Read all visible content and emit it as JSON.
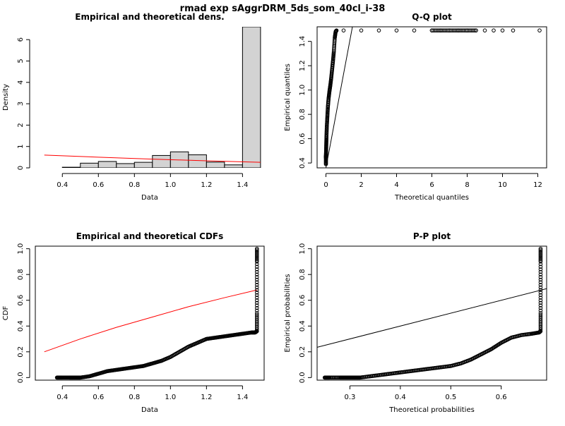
{
  "title": "rmad exp sAggrDRM_5ds_som_40cl_i-38",
  "chart_data": [
    {
      "type": "bar",
      "title": "Empirical and theoretical dens.",
      "xlabel": "Data",
      "ylabel": "Density",
      "xlim": [
        0.25,
        1.52
      ],
      "ylim": [
        0,
        6.6
      ],
      "x_ticks": [
        "0.4",
        "0.6",
        "0.8",
        "1.0",
        "1.2",
        "1.4"
      ],
      "y_ticks": [
        "0",
        "1",
        "2",
        "3",
        "4",
        "5",
        "6"
      ],
      "bins": [
        {
          "x0": 0.3,
          "x1": 0.4,
          "density": 0.0
        },
        {
          "x0": 0.4,
          "x1": 0.5,
          "density": 0.03
        },
        {
          "x0": 0.5,
          "x1": 0.6,
          "density": 0.22
        },
        {
          "x0": 0.6,
          "x1": 0.7,
          "density": 0.3
        },
        {
          "x0": 0.7,
          "x1": 0.8,
          "density": 0.2
        },
        {
          "x0": 0.8,
          "x1": 0.9,
          "density": 0.26
        },
        {
          "x0": 0.9,
          "x1": 1.0,
          "density": 0.58
        },
        {
          "x0": 1.0,
          "x1": 1.1,
          "density": 0.75
        },
        {
          "x0": 1.1,
          "x1": 1.2,
          "density": 0.61
        },
        {
          "x0": 1.2,
          "x1": 1.3,
          "density": 0.27
        },
        {
          "x0": 1.3,
          "x1": 1.4,
          "density": 0.14
        },
        {
          "x0": 1.4,
          "x1": 1.5,
          "density": 6.6
        }
      ],
      "theoretical_density": {
        "x": [
          0.3,
          0.6,
          0.9,
          1.2,
          1.5
        ],
        "y": [
          0.6,
          0.5,
          0.41,
          0.33,
          0.26
        ]
      }
    },
    {
      "type": "scatter",
      "title": "Q-Q plot",
      "xlabel": "Theoretical quantiles",
      "ylabel": "Empirical quantiles",
      "xlim": [
        -0.5,
        12.5
      ],
      "ylim": [
        0.36,
        1.52
      ],
      "x_ticks": [
        "0",
        "2",
        "4",
        "6",
        "8",
        "10",
        "12"
      ],
      "y_ticks": [
        "0.4",
        "0.6",
        "0.8",
        "1.0",
        "1.2",
        "1.4"
      ],
      "reference_line": {
        "x": [
          0,
          1.5
        ],
        "y": [
          0.36,
          1.52
        ]
      },
      "points": {
        "x": [
          0.0,
          0.0,
          0.0,
          0.01,
          0.02,
          0.03,
          0.05,
          0.08,
          0.11,
          0.15,
          0.2,
          0.25,
          0.3,
          0.35,
          0.4,
          0.45,
          0.5,
          0.55,
          0.6,
          1.0,
          2.0,
          3.0,
          4.0,
          5.0,
          6.0,
          6.5,
          7.0,
          7.5,
          8.0,
          8.5,
          9.0,
          9.5,
          10.0,
          10.6,
          12.1
        ],
        "y": [
          0.39,
          0.44,
          0.46,
          0.5,
          0.56,
          0.62,
          0.7,
          0.78,
          0.86,
          0.93,
          0.99,
          1.04,
          1.1,
          1.17,
          1.24,
          1.32,
          1.43,
          1.48,
          1.49,
          1.49,
          1.49,
          1.49,
          1.49,
          1.49,
          1.49,
          1.49,
          1.49,
          1.49,
          1.49,
          1.49,
          1.49,
          1.49,
          1.49,
          1.49,
          1.49
        ]
      }
    },
    {
      "type": "line",
      "title": "Empirical and theoretical CDFs",
      "xlabel": "Data",
      "ylabel": "CDF",
      "xlim": [
        0.25,
        1.52
      ],
      "ylim": [
        -0.02,
        1.02
      ],
      "x_ticks": [
        "0.4",
        "0.6",
        "0.8",
        "1.0",
        "1.2",
        "1.4"
      ],
      "y_ticks": [
        "0.0",
        "0.2",
        "0.4",
        "0.6",
        "0.8",
        "1.0"
      ],
      "empirical_cdf": {
        "x": [
          0.37,
          0.4,
          0.44,
          0.46,
          0.48,
          0.5,
          0.55,
          0.6,
          0.65,
          0.7,
          0.75,
          0.8,
          0.85,
          0.9,
          0.95,
          1.0,
          1.05,
          1.1,
          1.15,
          1.2,
          1.25,
          1.3,
          1.35,
          1.4,
          1.45,
          1.47,
          1.48,
          1.48,
          1.48,
          1.48,
          1.48
        ],
        "y": [
          0.0,
          0.0,
          0.0,
          0.0,
          0.0,
          0.0,
          0.01,
          0.03,
          0.05,
          0.06,
          0.07,
          0.08,
          0.09,
          0.11,
          0.13,
          0.16,
          0.2,
          0.24,
          0.27,
          0.3,
          0.31,
          0.32,
          0.33,
          0.34,
          0.35,
          0.35,
          0.36,
          0.5,
          0.7,
          0.9,
          1.0
        ]
      },
      "theoretical_cdf": {
        "x": [
          0.3,
          0.5,
          0.7,
          0.9,
          1.1,
          1.3,
          1.48
        ],
        "y": [
          0.2,
          0.3,
          0.39,
          0.47,
          0.55,
          0.62,
          0.68
        ]
      }
    },
    {
      "type": "scatter",
      "title": "P-P plot",
      "xlabel": "Theoretical probabilities",
      "ylabel": "Empirical probabilities",
      "xlim": [
        0.235,
        0.69
      ],
      "ylim": [
        -0.02,
        1.02
      ],
      "x_ticks": [
        "0.3",
        "0.4",
        "0.5",
        "0.6"
      ],
      "y_ticks": [
        "0.0",
        "0.2",
        "0.4",
        "0.6",
        "0.8",
        "1.0"
      ],
      "reference_line": {
        "x": [
          0.235,
          0.69
        ],
        "y": [
          0.235,
          0.69
        ]
      },
      "points": {
        "x": [
          0.25,
          0.26,
          0.28,
          0.29,
          0.3,
          0.31,
          0.32,
          0.34,
          0.36,
          0.38,
          0.4,
          0.42,
          0.44,
          0.46,
          0.48,
          0.5,
          0.52,
          0.54,
          0.56,
          0.58,
          0.6,
          0.62,
          0.64,
          0.66,
          0.675,
          0.678,
          0.678,
          0.678,
          0.678,
          0.678
        ],
        "y": [
          0.0,
          0.0,
          0.0,
          0.0,
          0.0,
          0.0,
          0.0,
          0.01,
          0.02,
          0.03,
          0.04,
          0.05,
          0.06,
          0.07,
          0.08,
          0.09,
          0.11,
          0.14,
          0.18,
          0.22,
          0.27,
          0.31,
          0.33,
          0.34,
          0.35,
          0.36,
          0.5,
          0.7,
          0.9,
          1.0
        ]
      }
    }
  ]
}
